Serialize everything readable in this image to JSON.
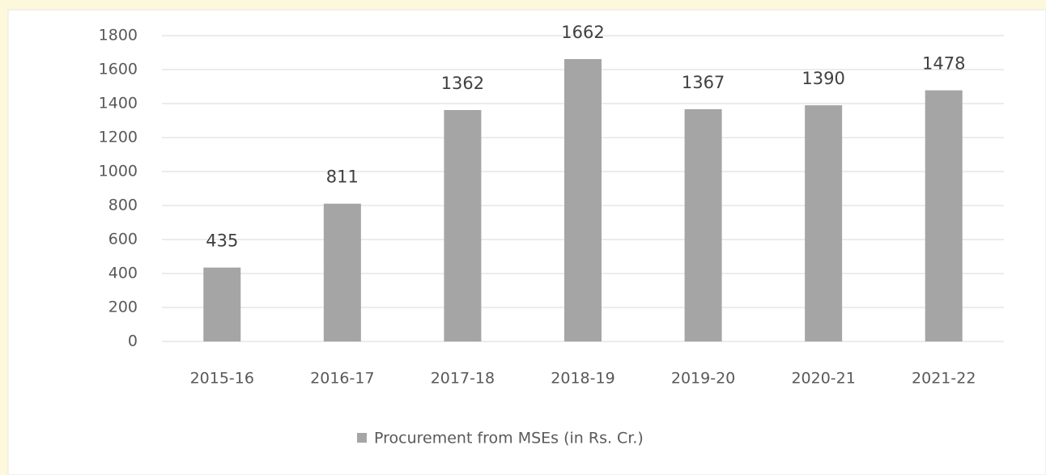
{
  "chart_data": {
    "type": "bar",
    "categories": [
      "2015-16",
      "2016-17",
      "2017-18",
      "2018-19",
      "2019-20",
      "2020-21",
      "2021-22"
    ],
    "series": [
      {
        "name": "Procurement from MSEs (in Rs. Cr.)",
        "color": "#a5a5a5",
        "values": [
          435,
          811,
          1362,
          1662,
          1367,
          1390,
          1478
        ]
      }
    ],
    "ylim": [
      0,
      1800
    ],
    "yticks": [
      0,
      200,
      400,
      600,
      800,
      1000,
      1200,
      1400,
      1600,
      1800
    ],
    "grid": true,
    "legend": "bottom"
  }
}
